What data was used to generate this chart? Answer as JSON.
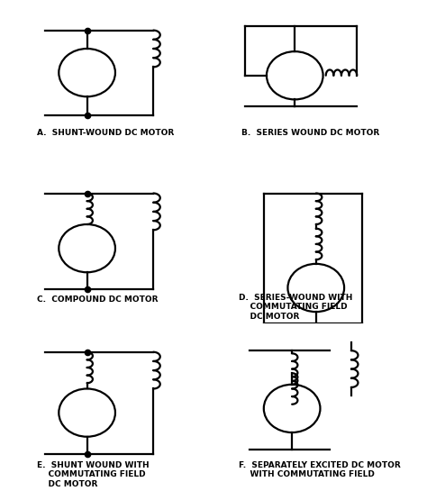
{
  "bg_color": "#ffffff",
  "line_color": "black",
  "lw": 1.6,
  "dot_size": 4.5,
  "labels": [
    "A.  SHUNT-WOUND DC MOTOR",
    "B.  SERIES WOUND DC MOTOR",
    "C.  COMPOUND DC MOTOR",
    "D.  SERIES-WOUND WITH\n    COMMUTATING FIELD\n    DC MOTOR",
    "E.  SHUNT WOUND WITH\n    COMMUTATING FIELD\n    DC MOTOR",
    "F.  SEPARATELY EXCITED DC MOTOR\n    WITH COMMUTATING FIELD"
  ],
  "font_size": 6.5
}
